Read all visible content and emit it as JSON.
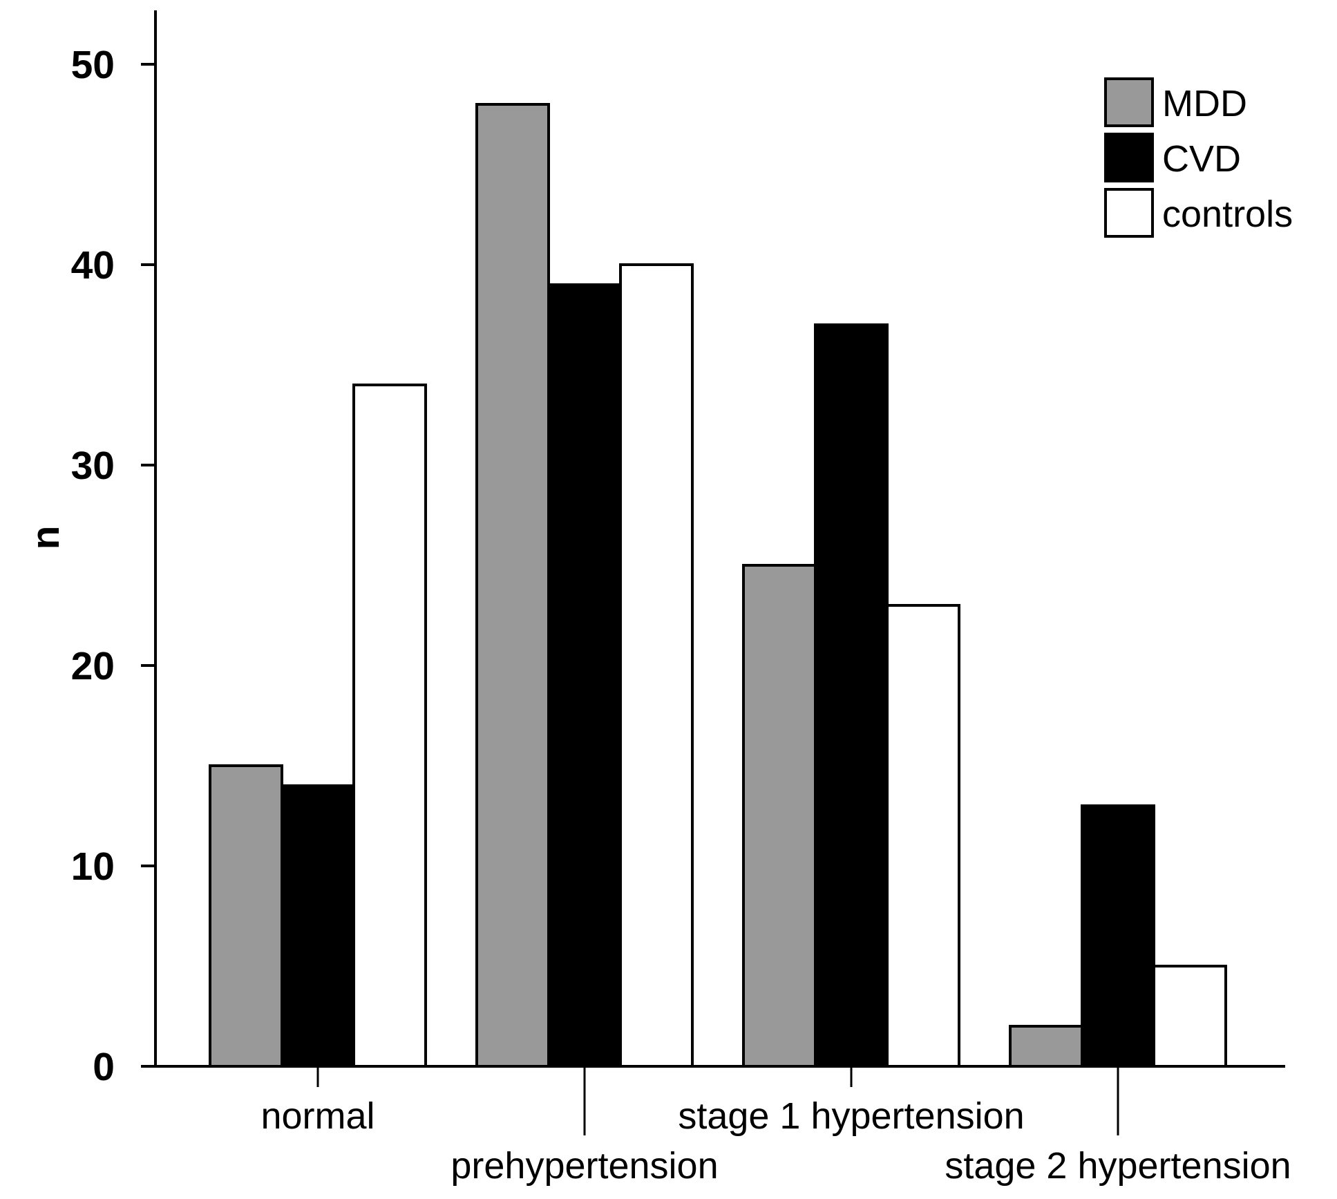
{
  "chart_data": {
    "type": "bar",
    "title": "",
    "xlabel": "",
    "ylabel": "n",
    "ylim": [
      0,
      50
    ],
    "yticks": [
      0,
      10,
      20,
      30,
      40,
      50
    ],
    "grid": false,
    "legend_position": "top-right",
    "categories": [
      "normal",
      "prehypertension",
      "stage 1 hypertension",
      "stage 2 hypertension"
    ],
    "series": [
      {
        "name": "MDD",
        "color": "#999999",
        "values": [
          15,
          48,
          25,
          2
        ]
      },
      {
        "name": "CVD",
        "color": "#000000",
        "values": [
          14,
          39,
          37,
          13
        ]
      },
      {
        "name": "controls",
        "color": "#ffffff",
        "values": [
          34,
          40,
          23,
          5
        ]
      }
    ]
  }
}
